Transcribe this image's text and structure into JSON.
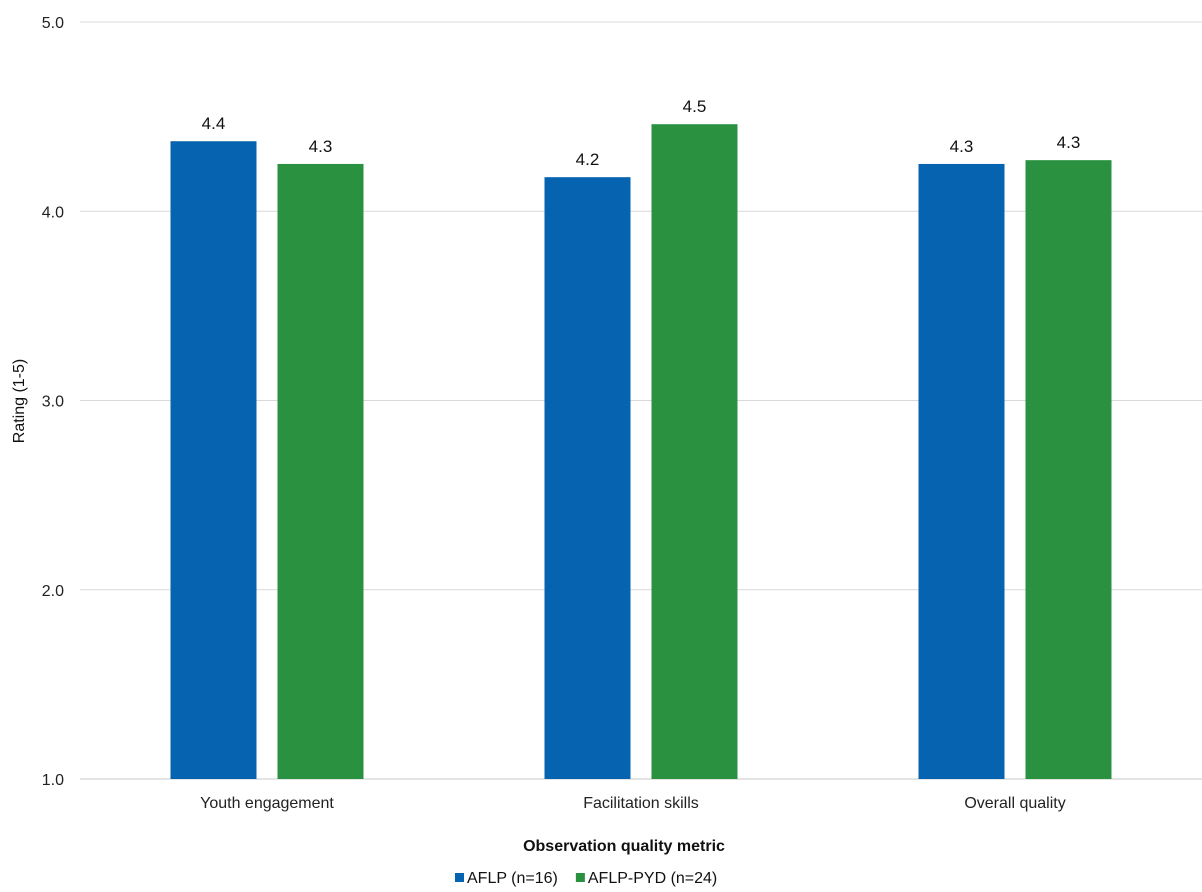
{
  "chart_data": {
    "type": "bar",
    "title": "",
    "xlabel": "Observation quality metric",
    "ylabel": "Rating (1-5)",
    "ylim": [
      1.0,
      5.0
    ],
    "yticks": [
      1.0,
      2.0,
      3.0,
      4.0,
      5.0
    ],
    "ytick_labels": [
      "1.0",
      "2.0",
      "3.0",
      "4.0",
      "5.0"
    ],
    "categories": [
      "Youth engagement",
      "Facilitation skills",
      "Overall quality"
    ],
    "series": [
      {
        "name": "AFLP (n=16)",
        "color": "#0563b0",
        "values": [
          4.37,
          4.18,
          4.25
        ],
        "labels": [
          "4.4",
          "4.2",
          "4.3"
        ]
      },
      {
        "name": "AFLP-PYD (n=24)",
        "color": "#2a9140",
        "values": [
          4.25,
          4.46,
          4.27
        ],
        "labels": [
          "4.3",
          "4.5",
          "4.3"
        ]
      }
    ],
    "grid": true,
    "legend_position": "bottom-center"
  }
}
